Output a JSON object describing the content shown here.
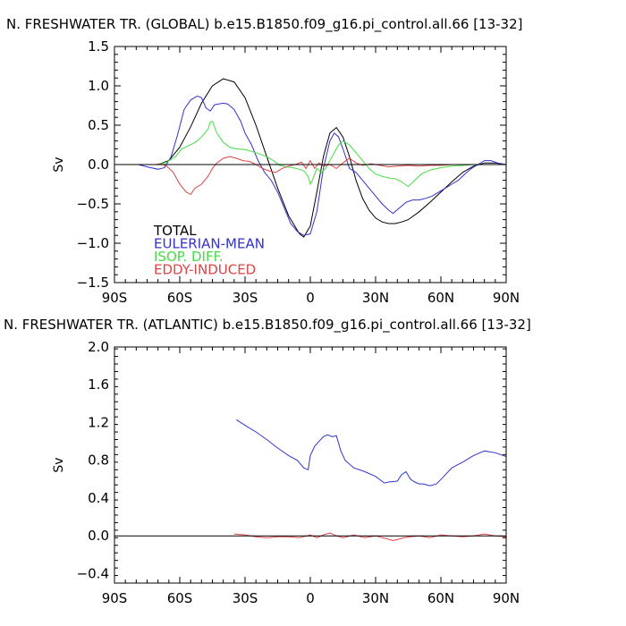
{
  "chart_data": [
    {
      "type": "line",
      "title": "N. FRESHWATER TR. (GLOBAL) b.e15.B1850.f09_g16.pi_control.all.66 [13-32]",
      "ylabel": "Sv",
      "xlim": [
        -90,
        90
      ],
      "ylim": [
        -1.5,
        1.5
      ],
      "xticks": [
        -90,
        -60,
        -30,
        0,
        30,
        60,
        90
      ],
      "xtick_labels": [
        "90S",
        "60S",
        "30S",
        "0",
        "30N",
        "60N",
        "90N"
      ],
      "yticks": [
        -1.5,
        -1.0,
        -0.5,
        0.0,
        0.5,
        1.0,
        1.5
      ],
      "ytick_labels": [
        "−1.5",
        "−1.0",
        "−0.5",
        "0.0",
        "0.5",
        "1.0",
        "1.5"
      ],
      "zero_line": true,
      "legend_position": "lower-left",
      "series": [
        {
          "name": "TOTAL",
          "color": "#000000",
          "x": [
            -79,
            -70,
            -65,
            -60,
            -55,
            -50,
            -45,
            -40,
            -35,
            -30,
            -25,
            -20,
            -15,
            -10,
            -5,
            -3,
            0,
            3,
            6,
            9,
            12,
            15,
            18,
            21,
            24,
            27,
            30,
            33,
            36,
            39,
            42,
            45,
            50,
            55,
            60,
            65,
            70,
            75,
            80,
            85,
            90
          ],
          "y": [
            0.0,
            0.0,
            0.05,
            0.22,
            0.48,
            0.78,
            1.0,
            1.09,
            1.05,
            0.85,
            0.5,
            0.1,
            -0.3,
            -0.65,
            -0.88,
            -0.92,
            -0.78,
            -0.35,
            0.1,
            0.4,
            0.47,
            0.35,
            0.1,
            -0.2,
            -0.43,
            -0.58,
            -0.68,
            -0.73,
            -0.75,
            -0.75,
            -0.73,
            -0.7,
            -0.6,
            -0.48,
            -0.35,
            -0.22,
            -0.1,
            -0.02,
            0.02,
            0.02,
            0.0
          ]
        },
        {
          "name": "EULERIAN-MEAN",
          "color": "#3333cc",
          "x": [
            -79,
            -75,
            -70,
            -67,
            -64,
            -61,
            -58,
            -55,
            -52,
            -50,
            -48,
            -46,
            -44,
            -42,
            -40,
            -38,
            -35,
            -32,
            -30,
            -27,
            -24,
            -21,
            -18,
            -15,
            -12,
            -9,
            -6,
            -3,
            0,
            3,
            6,
            9,
            11,
            13,
            15,
            18,
            21,
            24,
            27,
            30,
            33,
            36,
            38,
            41,
            44,
            47,
            50,
            53,
            56,
            59,
            62,
            65,
            68,
            71,
            74,
            77,
            80,
            83,
            86,
            90
          ],
          "y": [
            0.0,
            -0.03,
            -0.06,
            -0.04,
            0.1,
            0.38,
            0.7,
            0.82,
            0.87,
            0.85,
            0.72,
            0.68,
            0.76,
            0.77,
            0.78,
            0.77,
            0.7,
            0.55,
            0.4,
            0.25,
            0.05,
            -0.1,
            -0.2,
            -0.35,
            -0.55,
            -0.75,
            -0.85,
            -0.9,
            -0.88,
            -0.6,
            -0.05,
            0.3,
            0.4,
            0.35,
            0.2,
            -0.05,
            -0.1,
            -0.2,
            -0.3,
            -0.4,
            -0.5,
            -0.58,
            -0.62,
            -0.55,
            -0.48,
            -0.45,
            -0.45,
            -0.43,
            -0.4,
            -0.35,
            -0.3,
            -0.25,
            -0.2,
            -0.12,
            -0.05,
            0.0,
            0.05,
            0.05,
            0.02,
            0.0
          ]
        },
        {
          "name": "ISOP. DIFF.",
          "color": "#44dd44",
          "x": [
            -79,
            -70,
            -66,
            -62,
            -59,
            -56,
            -53,
            -50,
            -47,
            -46,
            -45,
            -43,
            -40,
            -37,
            -34,
            -30,
            -25,
            -20,
            -17,
            -14,
            -11,
            -8,
            -5,
            -3,
            -1,
            0,
            1,
            3,
            5,
            7,
            9,
            11,
            13,
            15,
            18,
            21,
            24,
            27,
            30,
            33,
            36,
            39,
            42,
            45,
            48,
            51,
            55,
            60,
            65,
            70,
            75,
            80,
            85,
            90
          ],
          "y": [
            0.0,
            0.0,
            0.03,
            0.1,
            0.2,
            0.24,
            0.28,
            0.35,
            0.45,
            0.54,
            0.55,
            0.4,
            0.28,
            0.22,
            0.2,
            0.19,
            0.15,
            0.1,
            0.05,
            -0.01,
            -0.03,
            -0.04,
            -0.06,
            -0.08,
            -0.15,
            -0.25,
            -0.2,
            -0.05,
            -0.1,
            -0.05,
            0.05,
            0.15,
            0.25,
            0.3,
            0.25,
            0.15,
            0.05,
            -0.05,
            -0.12,
            -0.15,
            -0.17,
            -0.18,
            -0.22,
            -0.28,
            -0.2,
            -0.12,
            -0.07,
            -0.04,
            -0.02,
            -0.01,
            0.0,
            0.0,
            0.0,
            0.0
          ]
        },
        {
          "name": "EDDY-INDUCED",
          "color": "#dd4444",
          "x": [
            -79,
            -71,
            -69,
            -66,
            -63,
            -60,
            -57,
            -55,
            -53,
            -50,
            -47,
            -45,
            -43,
            -40,
            -37,
            -34,
            -31,
            -28,
            -25,
            -22,
            -19,
            -16,
            -13,
            -10,
            -7,
            -4,
            -2,
            0,
            2,
            4,
            6,
            9,
            12,
            15,
            18,
            21,
            24,
            28,
            32,
            36,
            40,
            45,
            50,
            55,
            60,
            65,
            70,
            75,
            80,
            85,
            90
          ],
          "y": [
            0.0,
            0.0,
            0.01,
            -0.02,
            -0.1,
            -0.25,
            -0.35,
            -0.38,
            -0.3,
            -0.25,
            -0.15,
            -0.05,
            0.02,
            0.08,
            0.1,
            0.08,
            0.05,
            0.04,
            0.0,
            -0.05,
            -0.08,
            -0.1,
            -0.05,
            -0.02,
            0.0,
            0.03,
            -0.05,
            0.05,
            -0.05,
            0.02,
            -0.02,
            0.0,
            -0.05,
            0.02,
            0.08,
            0.02,
            -0.01,
            0.01,
            -0.01,
            -0.03,
            -0.02,
            -0.01,
            -0.02,
            -0.01,
            -0.01,
            0.0,
            0.0,
            0.0,
            0.0,
            0.0,
            0.0
          ]
        }
      ]
    },
    {
      "type": "line",
      "title": "N. FRESHWATER TR. (ATLANTIC) b.e15.B1850.f09_g16.pi_control.all.66 [13-32]",
      "ylabel": "Sv",
      "xlim": [
        -90,
        90
      ],
      "ylim": [
        -0.5,
        2.0
      ],
      "xticks": [
        -90,
        -60,
        -30,
        0,
        30,
        60,
        90
      ],
      "xtick_labels": [
        "90S",
        "60S",
        "30S",
        "0",
        "30N",
        "60N",
        "90N"
      ],
      "yticks": [
        -0.4,
        0.0,
        0.4,
        0.8,
        1.2,
        1.6,
        2.0
      ],
      "ytick_labels": [
        "−0.4",
        "0.0",
        "0.4",
        "0.8",
        "1.2",
        "1.6",
        "2.0"
      ],
      "zero_line": true,
      "series": [
        {
          "name": "EULERIAN-MEAN",
          "color": "#3333cc",
          "x": [
            -34,
            -30,
            -25,
            -20,
            -15,
            -10,
            -6,
            -3,
            -1,
            0,
            2,
            4,
            6,
            8,
            10,
            12,
            14,
            16,
            20,
            25,
            30,
            34,
            36,
            40,
            42,
            44,
            46,
            48,
            50,
            52,
            55,
            58,
            61,
            65,
            70,
            75,
            80,
            85,
            90
          ],
          "y": [
            1.23,
            1.17,
            1.1,
            1.02,
            0.93,
            0.85,
            0.8,
            0.72,
            0.7,
            0.85,
            0.95,
            1.0,
            1.05,
            1.07,
            1.05,
            1.06,
            0.9,
            0.8,
            0.72,
            0.68,
            0.63,
            0.56,
            0.57,
            0.58,
            0.65,
            0.68,
            0.6,
            0.57,
            0.55,
            0.55,
            0.53,
            0.55,
            0.62,
            0.72,
            0.78,
            0.85,
            0.9,
            0.88,
            0.84
          ]
        },
        {
          "name": "EDDY-INDUCED",
          "color": "#dd4444",
          "x": [
            -35,
            -30,
            -25,
            -20,
            -15,
            -10,
            -5,
            0,
            3,
            6,
            9,
            12,
            15,
            20,
            25,
            30,
            35,
            38,
            40,
            43,
            46,
            50,
            55,
            60,
            65,
            70,
            75,
            80,
            85,
            90
          ],
          "y": [
            0.02,
            0.01,
            -0.01,
            -0.02,
            -0.01,
            -0.01,
            -0.02,
            0.01,
            -0.02,
            0.01,
            0.03,
            0.0,
            -0.02,
            0.01,
            -0.02,
            0.0,
            -0.03,
            -0.05,
            -0.04,
            -0.02,
            -0.01,
            0.0,
            -0.02,
            0.01,
            0.0,
            -0.01,
            0.0,
            0.02,
            0.0,
            -0.01
          ]
        }
      ]
    }
  ]
}
